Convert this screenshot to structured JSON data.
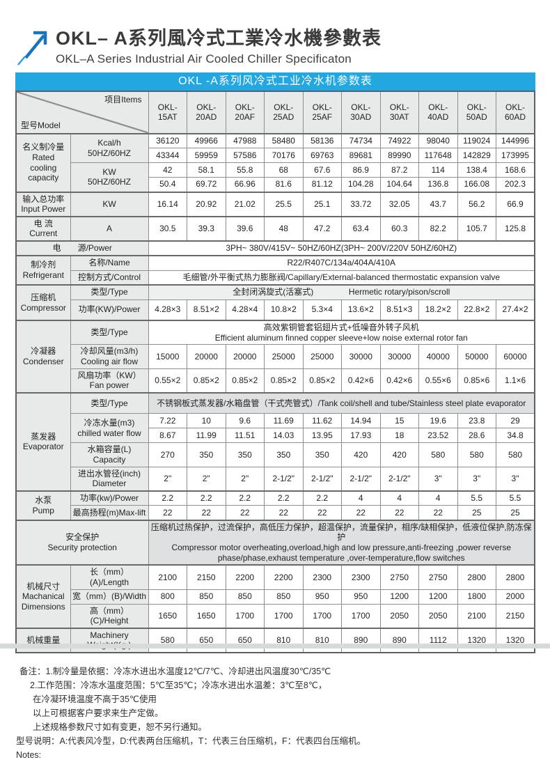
{
  "header": {
    "title_zh": "OKL– A系列風冷式工業冷水機參數表",
    "title_en": "OKL–A Series Industrial Air Cooled Chiller Specificaton",
    "logo_color_main": "#1b74b8",
    "logo_color_sub": "#2f9fd6"
  },
  "table": {
    "caption": "OKL -A系列风冷式工业冷水机参数表",
    "caption_bg": "#23a7e0",
    "corner": {
      "model": "型号Model",
      "items": "项目Items"
    },
    "models": [
      "OKL-15AT",
      "OKL-20AD",
      "OKL-20AF",
      "OKL-25AD",
      "OKL-25AF",
      "OKL-30AD",
      "OKL-30AT",
      "OKL-40AD",
      "OKL-50AD",
      "OKL-60AD"
    ],
    "rows": {
      "rated": {
        "label": "名义制冷量\nRated\ncooling\ncapacity",
        "kcal_label": "Kcal/h\n50HZ/60HZ",
        "kcal_50": [
          "36120",
          "49966",
          "47988",
          "58480",
          "58136",
          "74734",
          "74922",
          "98040",
          "119024",
          "144996"
        ],
        "kcal_60": [
          "43344",
          "59959",
          "57586",
          "70176",
          "69763",
          "89681",
          "89990",
          "117648",
          "142829",
          "173995"
        ],
        "kw_label": "KW\n50HZ/60HZ",
        "kw_50": [
          "42",
          "58.1",
          "55.8",
          "68",
          "67.6",
          "86.9",
          "87.2",
          "114",
          "138.4",
          "168.6"
        ],
        "kw_60": [
          "50.4",
          "69.72",
          "66.96",
          "81.6",
          "81.12",
          "104.28",
          "104.64",
          "136.8",
          "166.08",
          "202.3"
        ]
      },
      "input_power": {
        "label": "输入总功率\nInput Power",
        "unit": "KW",
        "values": [
          "16.14",
          "20.92",
          "21.02",
          "25.5",
          "25.1",
          "33.72",
          "32.05",
          "43.7",
          "56.2",
          "66.9"
        ]
      },
      "current": {
        "label": "电 流\nCurrent",
        "unit": "A",
        "values": [
          "30.5",
          "39.3",
          "39.6",
          "48",
          "47.2",
          "63.4",
          "60.3",
          "82.2",
          "105.7",
          "125.8"
        ]
      },
      "power_supply": {
        "label": "电　　源/Power",
        "value": "3PH~ 380V/415V~ 50HZ/60HZ(3PH~ 200V/220V  50HZ/60HZ)"
      },
      "refrigerant": {
        "label": "制冷剂\nRefrigerant",
        "name_label": "名称/Name",
        "name_value": "R22/R407C/134a/404A/410A",
        "control_label": "控制方式/Control",
        "control_value": "毛细管/外平衡式热力膨胀阀/Capillary/External-balanced thermostatic expansion valve"
      },
      "compressor": {
        "label": "压缩机\nCompressor",
        "type_label": "类型/Type",
        "type_zh": "全封闭涡旋式(活塞式)",
        "type_en": "Hermetic rotary/pison/scroll",
        "power_label": "功率(KW)/Power",
        "power_values": [
          "4.28×3",
          "8.51×2",
          "4.28×4",
          "10.8×2",
          "5.3×4",
          "13.6×2",
          "8.51×3",
          "18.2×2",
          "22.8×2",
          "27.4×2"
        ]
      },
      "condenser": {
        "label": "冷凝器\nCondenser",
        "type_label": "类型/Type",
        "type_value": "高效紫铜管套铝翅片式+低噪音外转子风机\nEfficient aluminum finned copper sleeve+low noise external rotor fan",
        "airflow_label": "冷却风量(m3/h)\nCooling air flow",
        "airflow_values": [
          "15000",
          "20000",
          "20000",
          "25000",
          "25000",
          "30000",
          "30000",
          "40000",
          "50000",
          "60000"
        ],
        "fan_label": "风扇功率（KW）\nFan power",
        "fan_values": [
          "0.55×2",
          "0.85×2",
          "0.85×2",
          "0.85×2",
          "0.85×2",
          "0.42×6",
          "0.42×6",
          "0.55×6",
          "0.85×6",
          "1.1×6"
        ]
      },
      "evaporator": {
        "label": "蒸发器\nEvaporator",
        "type_label": "类型/Type",
        "type_value": "不锈钢板式蒸发器/水箱盘管（干式壳管式）/Tank coil/shell and tube/Stainless steel plate evaporator",
        "water_label": "冷冻水量(m3)\nchilled water flow",
        "water_50": [
          "7.22",
          "10",
          "9.6",
          "11.69",
          "11.62",
          "14.94",
          "15",
          "19.6",
          "23.8",
          "29"
        ],
        "water_60": [
          "8.67",
          "11.99",
          "11.51",
          "14.03",
          "13.95",
          "17.93",
          "18",
          "23.52",
          "28.6",
          "34.8"
        ],
        "capacity_label": "水箱容量(L)\nCapacity",
        "capacity_values": [
          "270",
          "350",
          "350",
          "350",
          "350",
          "420",
          "420",
          "580",
          "580",
          "580"
        ],
        "diameter_label": "进出水管径(inch)\nDiameter",
        "diameter_values": [
          "2\"",
          "2\"",
          "2\"",
          "2-1/2\"",
          "2-1/2\"",
          "2-1/2\"",
          "2-1/2\"",
          "3\"",
          "3\"",
          "3\""
        ]
      },
      "pump": {
        "label": "水泵\nPump",
        "power_label": "功率(kw)/Power",
        "power_values": [
          "2.2",
          "2.2",
          "2.2",
          "2.2",
          "2.2",
          "4",
          "4",
          "4",
          "5.5",
          "5.5"
        ],
        "lift_label": "最高扬程(m)Max-lift",
        "lift_values": [
          "22",
          "22",
          "22",
          "22",
          "22",
          "22",
          "22",
          "22",
          "25",
          "25"
        ]
      },
      "security": {
        "label": "安全保护\nSecurity protection",
        "value_zh": "压缩机过热保护，过流保护，高低压力保护，超温保护，流量保护，相序/缺相保护，低液位保护,防冻保护",
        "value_en": "Compressor motor overheating,overload,high and low pressure,anti-freezing ,power reverse phase/phase,exhaust temperature ,over-temperature,flow switches"
      },
      "dimensions": {
        "label": "机械尺寸\nMachanical\nDimensions",
        "length_label": "长（mm）(A)/Length",
        "length_values": [
          "2100",
          "2150",
          "2200",
          "2200",
          "2300",
          "2300",
          "2750",
          "2750",
          "2800",
          "2800"
        ],
        "width_label": "宽（mm）(B)/Width",
        "width_values": [
          "800",
          "850",
          "850",
          "850",
          "950",
          "950",
          "1200",
          "1200",
          "1800",
          "2000"
        ],
        "height_label": "高（mm）(C)/Height",
        "height_values": [
          "1650",
          "1650",
          "1700",
          "1700",
          "1700",
          "1700",
          "2050",
          "2050",
          "2100",
          "2150"
        ]
      },
      "weight": {
        "label": "机械重量",
        "unit_label": "Machinery\nWeight(Kg )",
        "values": [
          "580",
          "650",
          "650",
          "810",
          "810",
          "890",
          "890",
          "1112",
          "1320",
          "1320"
        ]
      }
    }
  },
  "notes": {
    "line1": "备注：1.制冷量是依据：冷冻水进出水温度12℃/7℃、冷却进出风温度30℃/35℃",
    "line2": "2.工作范围：冷冻水温度范围：5℃至35℃；冷冻水进出水温差：3℃至8℃，",
    "line3": "在冷凝环境温度不高于35℃使用",
    "line4": "以上可根据客户要求来生产定做。",
    "line5": "上述规格参数尺寸如有变更，恕不另行通知。",
    "line6": "型号说明：A:代表风冷型，D:代表两台压缩机，T：代表三台压缩机，F：代表四台压缩机。",
    "line7": "Notes:"
  }
}
